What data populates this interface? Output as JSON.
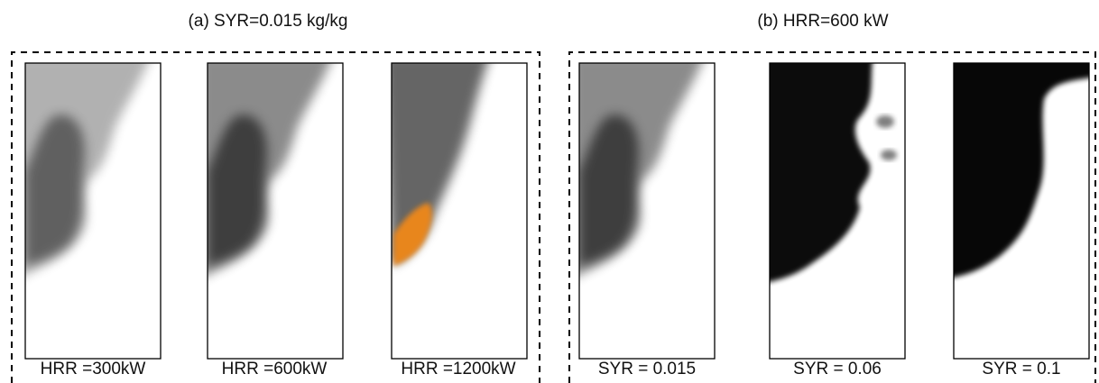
{
  "panels": [
    {
      "title": "(a) SYR=0.015 kg/kg",
      "images": [
        {
          "label": "HRR =300kW"
        },
        {
          "label": "HRR =600kW"
        },
        {
          "label": "HRR =1200kW"
        }
      ]
    },
    {
      "title": "(b) HRR=600 kW",
      "images": [
        {
          "label": "SYR = 0.015"
        },
        {
          "label": "SYR = 0.06"
        },
        {
          "label": "SYR = 0.1"
        }
      ]
    }
  ]
}
